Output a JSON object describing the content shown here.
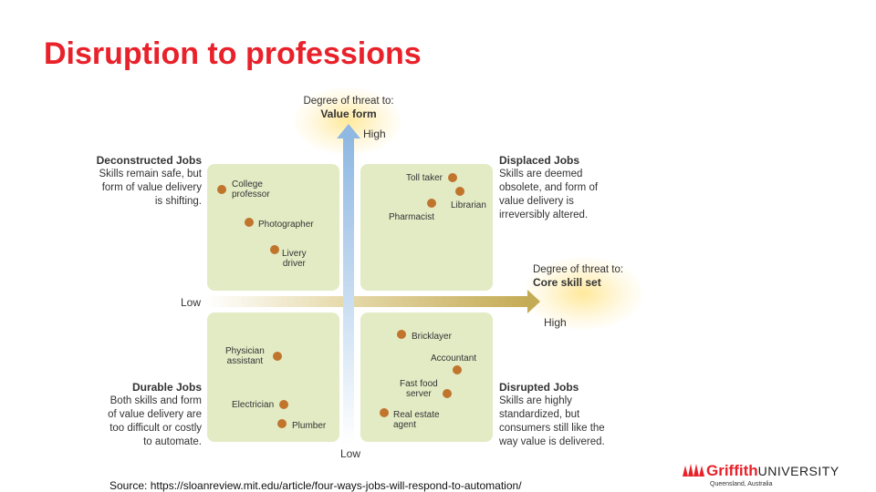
{
  "slide": {
    "title": "Disruption to professions"
  },
  "y_axis": {
    "prefix": "Degree of threat to:",
    "name": "Value form",
    "high": "High",
    "low": "Low"
  },
  "x_axis": {
    "prefix": "Degree of threat to:",
    "name": "Core skill set",
    "high": "High",
    "low": "Low"
  },
  "quadrants": {
    "deconstructed": {
      "title": "Deconstructed Jobs",
      "desc": [
        "Skills remain safe, but",
        "form of value delivery",
        "is shifting."
      ]
    },
    "displaced": {
      "title": "Displaced Jobs",
      "desc": [
        "Skills are deemed",
        "obsolete, and form of",
        "value delivery is",
        "irreversibly altered."
      ]
    },
    "durable": {
      "title": "Durable Jobs",
      "desc": [
        "Both skills and form",
        "of value delivery are",
        "too difficult or costly",
        "to automate."
      ]
    },
    "disrupted": {
      "title": "Disrupted Jobs",
      "desc": [
        "Skills are highly",
        "standardized, but",
        "consumers still like the",
        "way value is delivered."
      ]
    }
  },
  "jobs": {
    "college_professor": [
      "College",
      "professor"
    ],
    "photographer": "Photographer",
    "livery_driver": [
      "Livery",
      "driver"
    ],
    "toll_taker": "Toll taker",
    "librarian": "Librarian",
    "pharmacist": "Pharmacist",
    "physician_assistant": [
      "Physician",
      "assistant"
    ],
    "electrician": "Electrician",
    "plumber": "Plumber",
    "bricklayer": "Bricklayer",
    "accountant": "Accountant",
    "fast_food_server": [
      "Fast food",
      "server"
    ],
    "real_estate_agent": [
      "Real estate",
      "agent"
    ]
  },
  "source": "Source: https://sloanreview.mit.edu/article/four-ways-jobs-will-respond-to-automation/",
  "logo": {
    "brand": "Griffith",
    "university": "UNIVERSITY",
    "sub": "Queensland, Australia"
  },
  "colors": {
    "title": "#e8212a",
    "quadrant": "#e3ebc5",
    "dot": "#c0742c",
    "y_arrow": "#9fc3e6",
    "x_arrow": "#cdb76a"
  }
}
